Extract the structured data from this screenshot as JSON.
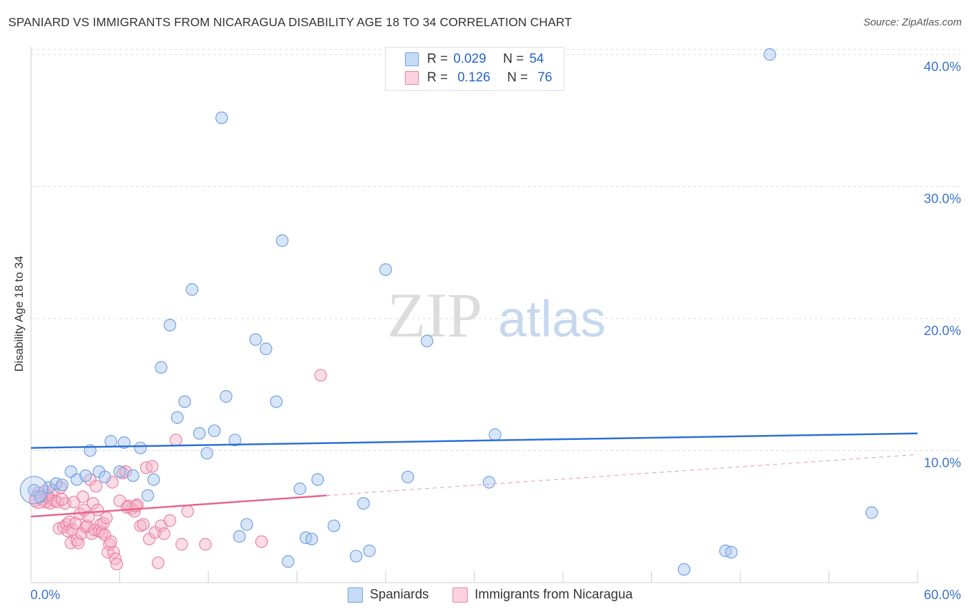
{
  "header": {
    "title": "SPANIARD VS IMMIGRANTS FROM NICARAGUA DISABILITY AGE 18 TO 34 CORRELATION CHART",
    "source": "Source: ZipAtlas.com"
  },
  "watermark": {
    "zip": "ZIP",
    "atlas": "atlas"
  },
  "legend": {
    "rows": [
      {
        "r_label": "R =",
        "r_value": "0.029",
        "n_label": "N =",
        "n_value": "54",
        "color": "#a9c6f0"
      },
      {
        "r_label": "R =",
        "r_value": "0.126",
        "n_label": "N =",
        "n_value": "76",
        "color": "#f5b3c8"
      }
    ]
  },
  "bottom_legend": {
    "items": [
      {
        "label": "Spaniards",
        "color": "#a9c6f0"
      },
      {
        "label": "Immigrants from Nicaragua",
        "color": "#f5b3c8"
      }
    ]
  },
  "chart_data": {
    "type": "scatter",
    "title": "SPANIARD VS IMMIGRANTS FROM NICARAGUA DISABILITY AGE 18 TO 34 CORRELATION CHART",
    "ylabel": "Disability Age 18 to 34",
    "xlabel": "",
    "xlim": [
      0,
      60
    ],
    "ylim": [
      0,
      42
    ],
    "x_tick_labels": [
      "0.0%",
      "60.0%"
    ],
    "y_ticks": [
      10,
      20,
      30,
      40
    ],
    "y_tick_labels": [
      "10.0%",
      "20.0%",
      "30.0%",
      "40.0%"
    ],
    "grid": true,
    "legend_position": "top-center",
    "series": [
      {
        "name": "Spaniards",
        "color": "#6fa0e0",
        "fill": "#a9c6f0",
        "trend": {
          "x": [
            0,
            60
          ],
          "y": [
            10.2,
            11.3
          ],
          "color": "#2a6fd6"
        },
        "points": [
          [
            0.2,
            7.0
          ],
          [
            0.6,
            6.5
          ],
          [
            1.2,
            7.2
          ],
          [
            1.7,
            7.5
          ],
          [
            2.1,
            7.4
          ],
          [
            2.7,
            8.4
          ],
          [
            3.1,
            7.8
          ],
          [
            3.7,
            8.1
          ],
          [
            4.0,
            10.0
          ],
          [
            4.6,
            8.4
          ],
          [
            5.0,
            8.0
          ],
          [
            5.4,
            10.7
          ],
          [
            6.0,
            8.4
          ],
          [
            6.3,
            10.6
          ],
          [
            6.9,
            8.1
          ],
          [
            7.4,
            10.2
          ],
          [
            7.9,
            6.6
          ],
          [
            8.3,
            7.8
          ],
          [
            8.8,
            16.3
          ],
          [
            9.4,
            19.5
          ],
          [
            9.9,
            12.5
          ],
          [
            10.4,
            13.7
          ],
          [
            10.9,
            22.2
          ],
          [
            11.4,
            11.3
          ],
          [
            11.9,
            9.8
          ],
          [
            12.4,
            11.5
          ],
          [
            12.9,
            35.2
          ],
          [
            13.2,
            14.1
          ],
          [
            13.8,
            10.8
          ],
          [
            14.1,
            3.5
          ],
          [
            14.6,
            4.4
          ],
          [
            15.2,
            18.4
          ],
          [
            15.9,
            17.7
          ],
          [
            16.6,
            13.7
          ],
          [
            17.0,
            25.9
          ],
          [
            17.4,
            1.6
          ],
          [
            18.2,
            7.1
          ],
          [
            18.6,
            3.4
          ],
          [
            19.0,
            3.3
          ],
          [
            19.4,
            7.8
          ],
          [
            20.5,
            4.3
          ],
          [
            22.0,
            2.0
          ],
          [
            22.5,
            6.0
          ],
          [
            22.9,
            2.4
          ],
          [
            24.0,
            23.7
          ],
          [
            25.5,
            8.0
          ],
          [
            26.8,
            18.3
          ],
          [
            31.0,
            7.6
          ],
          [
            31.4,
            11.2
          ],
          [
            44.2,
            1.0
          ],
          [
            47.0,
            2.4
          ],
          [
            47.4,
            2.3
          ],
          [
            50.0,
            40.0
          ],
          [
            56.9,
            5.3
          ]
        ]
      },
      {
        "name": "Immigrants from Nicaragua",
        "color": "#ec7fa3",
        "fill": "#f5b3c8",
        "trend": {
          "x": [
            0,
            20
          ],
          "y": [
            5.0,
            6.6
          ],
          "color": "#e8638c"
        },
        "trend_extension": {
          "x": [
            20,
            60
          ],
          "y": [
            6.6,
            9.7
          ]
        },
        "points": [
          [
            0.3,
            6.2
          ],
          [
            0.5,
            6.8
          ],
          [
            0.7,
            6.3
          ],
          [
            0.9,
            6.9
          ],
          [
            1.0,
            6.1
          ],
          [
            1.2,
            6.4
          ],
          [
            1.3,
            6.0
          ],
          [
            1.5,
            7.0
          ],
          [
            1.6,
            6.2
          ],
          [
            1.8,
            6.1
          ],
          [
            1.9,
            4.1
          ],
          [
            2.0,
            7.2
          ],
          [
            2.2,
            4.2
          ],
          [
            2.3,
            6.0
          ],
          [
            2.4,
            4.4
          ],
          [
            2.5,
            3.9
          ],
          [
            2.6,
            4.6
          ],
          [
            2.7,
            3.0
          ],
          [
            2.8,
            4.0
          ],
          [
            2.9,
            6.1
          ],
          [
            3.0,
            4.5
          ],
          [
            3.1,
            3.2
          ],
          [
            3.2,
            3.0
          ],
          [
            3.3,
            5.2
          ],
          [
            3.4,
            3.7
          ],
          [
            3.5,
            6.5
          ],
          [
            3.6,
            5.5
          ],
          [
            3.7,
            4.2
          ],
          [
            3.8,
            4.3
          ],
          [
            3.9,
            5.0
          ],
          [
            4.0,
            7.8
          ],
          [
            4.1,
            3.7
          ],
          [
            4.2,
            6.0
          ],
          [
            4.3,
            4.0
          ],
          [
            4.4,
            7.3
          ],
          [
            4.5,
            5.5
          ],
          [
            4.6,
            3.9
          ],
          [
            4.7,
            4.4
          ],
          [
            4.8,
            3.8
          ],
          [
            4.9,
            4.5
          ],
          [
            5.0,
            3.6
          ],
          [
            5.1,
            4.9
          ],
          [
            5.2,
            2.3
          ],
          [
            5.3,
            2.9
          ],
          [
            5.4,
            3.1
          ],
          [
            5.5,
            7.6
          ],
          [
            5.6,
            2.3
          ],
          [
            5.7,
            1.8
          ],
          [
            5.8,
            1.4
          ],
          [
            6.0,
            6.2
          ],
          [
            6.2,
            8.3
          ],
          [
            6.4,
            8.4
          ],
          [
            6.6,
            5.8
          ],
          [
            6.8,
            5.6
          ],
          [
            7.0,
            5.4
          ],
          [
            7.2,
            5.9
          ],
          [
            7.4,
            4.3
          ],
          [
            7.6,
            4.4
          ],
          [
            7.8,
            8.7
          ],
          [
            8.0,
            3.3
          ],
          [
            8.2,
            8.8
          ],
          [
            8.4,
            3.8
          ],
          [
            8.6,
            1.5
          ],
          [
            8.8,
            4.3
          ],
          [
            9.0,
            3.7
          ],
          [
            9.4,
            4.7
          ],
          [
            9.8,
            10.8
          ],
          [
            10.2,
            2.9
          ],
          [
            10.6,
            5.4
          ],
          [
            11.8,
            2.9
          ],
          [
            15.6,
            3.1
          ],
          [
            19.6,
            15.7
          ],
          [
            1.1,
            6.6
          ],
          [
            2.1,
            6.3
          ],
          [
            6.5,
            5.7
          ],
          [
            7.1,
            5.8
          ]
        ]
      }
    ]
  }
}
